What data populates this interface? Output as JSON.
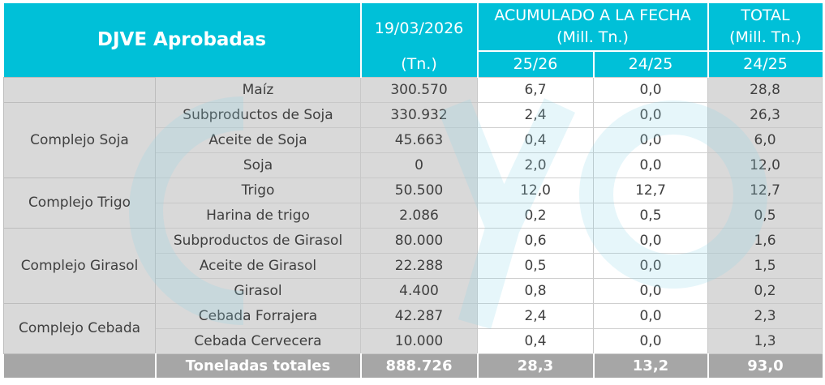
{
  "header": {
    "title": "DJVE Aprobadas",
    "date_label": "19/03/2026",
    "date_unit": "(Tn.)",
    "acumulado_label": "ACUMULADO A LA FECHA",
    "acumulado_unit": "(Mill. Tn.)",
    "total_label": "TOTAL",
    "total_unit": "(Mill. Tn.)",
    "col_2526": "25/26",
    "col_2425": "24/25",
    "col_total_2425": "24/25"
  },
  "groups": [
    {
      "name": "",
      "rows": [
        {
          "product": "Maíz",
          "tn": "300.570",
          "acum_2526": "6,7",
          "acum_2425": "0,0",
          "total_2425": "28,8"
        }
      ]
    },
    {
      "name": "Complejo Soja",
      "rows": [
        {
          "product": "Subproductos de Soja",
          "tn": "330.932",
          "acum_2526": "2,4",
          "acum_2425": "0,0",
          "total_2425": "26,3"
        },
        {
          "product": "Aceite de Soja",
          "tn": "45.663",
          "acum_2526": "0,4",
          "acum_2425": "0,0",
          "total_2425": "6,0"
        },
        {
          "product": "Soja",
          "tn": "0",
          "acum_2526": "2,0",
          "acum_2425": "0,0",
          "total_2425": "12,0"
        }
      ]
    },
    {
      "name": "Complejo Trigo",
      "rows": [
        {
          "product": "Trigo",
          "tn": "50.500",
          "acum_2526": "12,0",
          "acum_2425": "12,7",
          "total_2425": "12,7"
        },
        {
          "product": "Harina de trigo",
          "tn": "2.086",
          "acum_2526": "0,2",
          "acum_2425": "0,5",
          "total_2425": "0,5"
        }
      ]
    },
    {
      "name": "Complejo Girasol",
      "rows": [
        {
          "product": "Subproductos de Girasol",
          "tn": "80.000",
          "acum_2526": "0,6",
          "acum_2425": "0,0",
          "total_2425": "1,6"
        },
        {
          "product": "Aceite de Girasol",
          "tn": "22.288",
          "acum_2526": "0,5",
          "acum_2425": "0,0",
          "total_2425": "1,5"
        },
        {
          "product": "Girasol",
          "tn": "4.400",
          "acum_2526": "0,8",
          "acum_2425": "0,0",
          "total_2425": "0,2"
        }
      ]
    },
    {
      "name": "Complejo Cebada",
      "rows": [
        {
          "product": "Cebada Forrajera",
          "tn": "42.287",
          "acum_2526": "2,4",
          "acum_2425": "0,0",
          "total_2425": "2,3"
        },
        {
          "product": "Cebada Cervecera",
          "tn": "10.000",
          "acum_2526": "0,4",
          "acum_2425": "0,0",
          "total_2425": "1,3"
        }
      ]
    }
  ],
  "totals": {
    "label": "Toneladas totales",
    "tn": "888.726",
    "acum_2526": "28,3",
    "acum_2425": "13,2",
    "total_2425": "93,0"
  },
  "colors": {
    "header_bg": "#00c0d8",
    "group_bg": "#d9d9d9",
    "footer_bg": "#a6a6a6",
    "watermark": "#8fd8e8"
  },
  "watermark_icon": "logo-watermark"
}
